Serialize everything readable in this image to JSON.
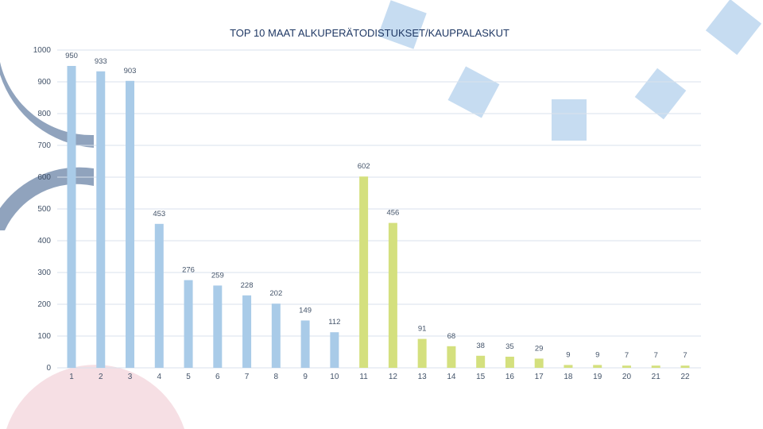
{
  "chart_data": {
    "type": "bar",
    "title": "TOP 10 MAAT ALKUPERÄTODISTUKSET/KAUPPALASKUT",
    "xlabel": "",
    "ylabel": "",
    "ylim": [
      0,
      1000
    ],
    "yticks": [
      0,
      100,
      200,
      300,
      400,
      500,
      600,
      700,
      800,
      900,
      1000
    ],
    "grid": true,
    "legend": "none",
    "categories": [
      "1",
      "2",
      "3",
      "4",
      "5",
      "6",
      "7",
      "8",
      "9",
      "10",
      "11",
      "12",
      "13",
      "14",
      "15",
      "16",
      "17",
      "18",
      "19",
      "20",
      "21",
      "22"
    ],
    "values": [
      950,
      933,
      903,
      453,
      276,
      259,
      228,
      202,
      149,
      112,
      602,
      456,
      91,
      68,
      38,
      35,
      29,
      9,
      9,
      7,
      7,
      7
    ],
    "bar_colors": [
      "#a9cbe8",
      "#a9cbe8",
      "#a9cbe8",
      "#a9cbe8",
      "#a9cbe8",
      "#a9cbe8",
      "#a9cbe8",
      "#a9cbe8",
      "#a9cbe8",
      "#a9cbe8",
      "#d4e07e",
      "#d4e07e",
      "#d4e07e",
      "#d4e07e",
      "#d4e07e",
      "#d4e07e",
      "#d4e07e",
      "#d4e07e",
      "#d4e07e",
      "#d4e07e",
      "#d4e07e",
      "#d4e07e"
    ]
  },
  "colors": {
    "grid": "#d9e2ec",
    "text": "#44546a",
    "title": "#1f3864",
    "deco_arc": "#7d93b2",
    "deco_square": "#c6dcf1",
    "deco_pink": "#f4d7dd"
  }
}
